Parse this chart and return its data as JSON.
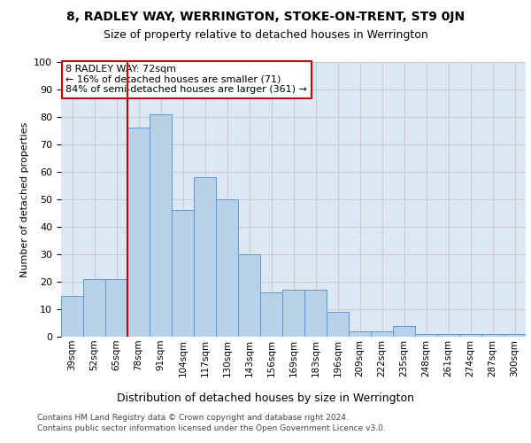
{
  "title1": "8, RADLEY WAY, WERRINGTON, STOKE-ON-TRENT, ST9 0JN",
  "title2": "Size of property relative to detached houses in Werrington",
  "xlabel": "Distribution of detached houses by size in Werrington",
  "ylabel": "Number of detached properties",
  "categories": [
    "39sqm",
    "52sqm",
    "65sqm",
    "78sqm",
    "91sqm",
    "104sqm",
    "117sqm",
    "130sqm",
    "143sqm",
    "156sqm",
    "169sqm",
    "183sqm",
    "196sqm",
    "209sqm",
    "222sqm",
    "235sqm",
    "248sqm",
    "261sqm",
    "274sqm",
    "287sqm",
    "300sqm"
  ],
  "values": [
    15,
    21,
    21,
    76,
    81,
    46,
    58,
    50,
    30,
    16,
    17,
    17,
    9,
    2,
    2,
    4,
    1,
    1,
    1,
    1,
    1
  ],
  "bar_color": "#b8d0e8",
  "bar_edgecolor": "#5b9bd5",
  "redline_x": 2.5,
  "annotation_text": "8 RADLEY WAY: 72sqm\n← 16% of detached houses are smaller (71)\n84% of semi-detached houses are larger (361) →",
  "annotation_box_edgecolor": "#cc0000",
  "redline_color": "#cc0000",
  "ylim": [
    0,
    100
  ],
  "yticks": [
    0,
    10,
    20,
    30,
    40,
    50,
    60,
    70,
    80,
    90,
    100
  ],
  "grid_color": "#cccccc",
  "background_color": "#dde8f5",
  "footer1": "Contains HM Land Registry data © Crown copyright and database right 2024.",
  "footer2": "Contains public sector information licensed under the Open Government Licence v3.0."
}
